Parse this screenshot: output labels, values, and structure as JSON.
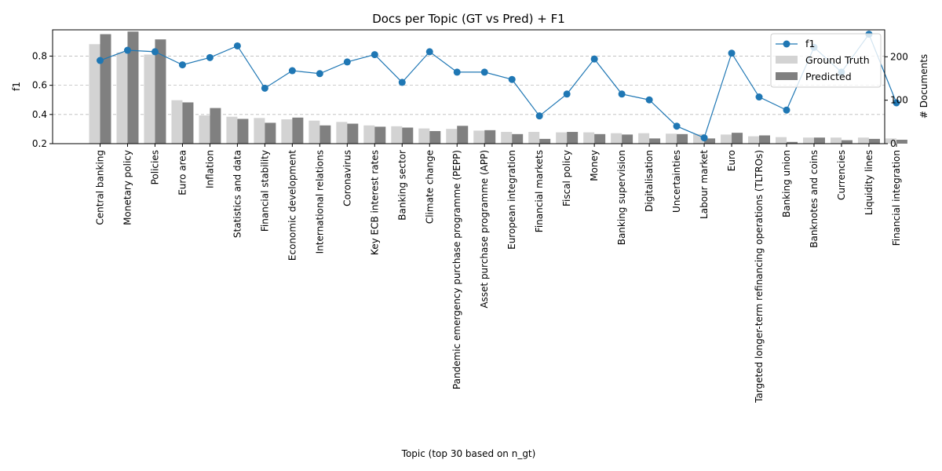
{
  "chart_data": {
    "type": "bar",
    "title": "Docs per Topic (GT vs Pred) + F1",
    "xlabel": "Topic (top 30 based on n_gt)",
    "ylabel": "f1",
    "ylabel_right": "# Documents",
    "ylim": [
      0.2,
      0.98
    ],
    "ylim_right": [
      0,
      262
    ],
    "yticks": [
      "0.2",
      "0.4",
      "0.6",
      "0.8"
    ],
    "yticks_right": [
      "0",
      "100",
      "200"
    ],
    "grid": "horizontal dashed",
    "legend_position": "top-right",
    "categories": [
      "Central banking",
      "Monetary policy",
      "Policies",
      "Euro area",
      "Inflation",
      "Statistics and data",
      "Financial stability",
      "Economic development",
      "International relations",
      "Coronavirus",
      "Key ECB interest rates",
      "Banking sector",
      "Climate change",
      "Pandemic emergency purchase programme (PEPP)",
      "Asset purchase programme (APP)",
      "European integration",
      "Financial markets",
      "Fiscal policy",
      "Money",
      "Banking supervision",
      "Digitalisation",
      "Uncertainties",
      "Labour market",
      "Euro",
      "Targeted longer-term refinancing operations (TLTROs)",
      "Banking union",
      "Banknotes and coins",
      "Currencies",
      "Liquidity lines",
      "Financial integration"
    ],
    "series": [
      {
        "name": "Ground Truth",
        "kind": "bar",
        "color": "#d3d3d3",
        "values": [
          229,
          210,
          205,
          100,
          65,
          62,
          59,
          56,
          53,
          50,
          42,
          40,
          35,
          34,
          30,
          27,
          27,
          26,
          26,
          24,
          24,
          23,
          22,
          21,
          17,
          15,
          14,
          14,
          14,
          12
        ]
      },
      {
        "name": "Predicted",
        "kind": "bar",
        "color": "#808080",
        "values": [
          252,
          258,
          240,
          95,
          82,
          57,
          48,
          60,
          42,
          46,
          39,
          37,
          29,
          41,
          31,
          22,
          11,
          27,
          22,
          21,
          12,
          22,
          12,
          25,
          19,
          4,
          14,
          8,
          11,
          9
        ]
      },
      {
        "name": "f1",
        "kind": "line",
        "color": "#1f77b4",
        "values": [
          0.77,
          0.84,
          0.83,
          0.74,
          0.79,
          0.87,
          0.58,
          0.7,
          0.68,
          0.76,
          0.81,
          0.62,
          0.83,
          0.69,
          0.69,
          0.64,
          0.39,
          0.54,
          0.78,
          0.54,
          0.5,
          0.32,
          0.24,
          0.82,
          0.52,
          0.43,
          0.86,
          0.69,
          0.95,
          0.48
        ]
      }
    ]
  }
}
